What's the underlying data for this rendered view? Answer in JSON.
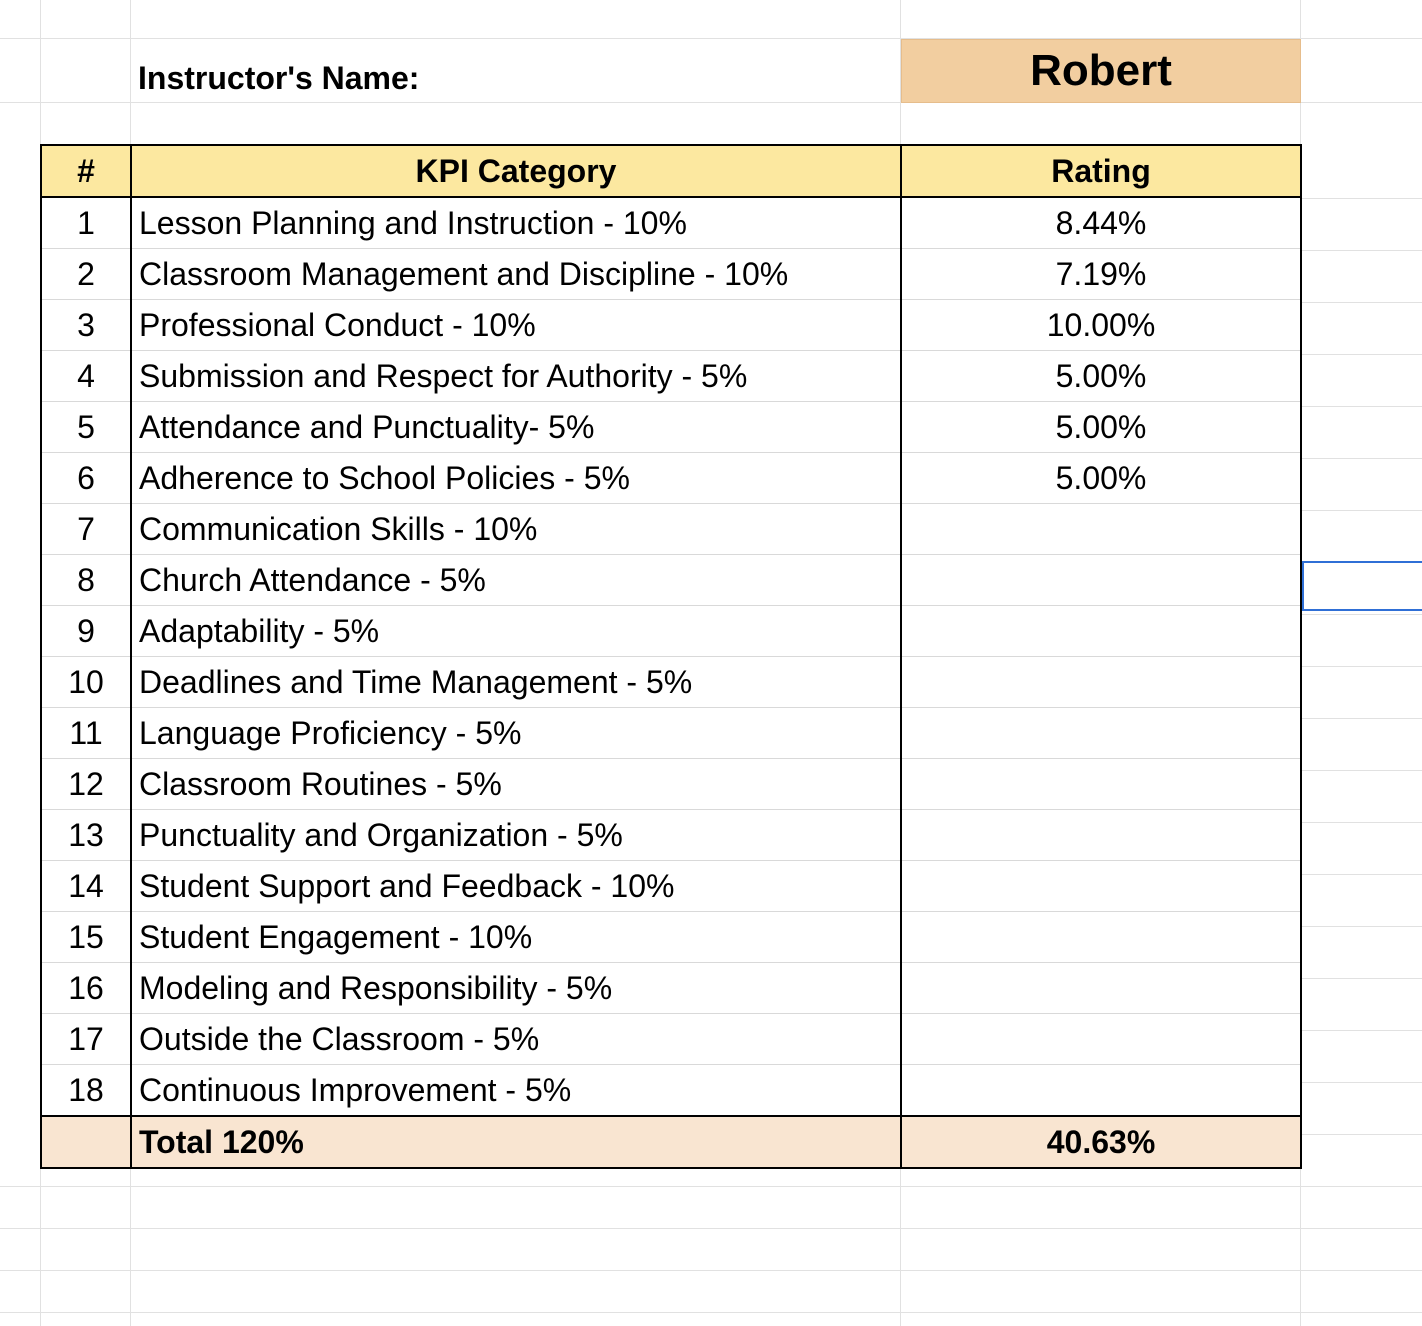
{
  "header": {
    "label": "Instructor's Name:",
    "value": "Robert"
  },
  "table": {
    "columns": [
      "#",
      "KPI Category",
      "Rating"
    ],
    "rows": [
      {
        "num": "1",
        "category": "Lesson Planning and Instruction - 10%",
        "rating": "8.44%"
      },
      {
        "num": "2",
        "category": "Classroom Management and Discipline - 10%",
        "rating": "7.19%"
      },
      {
        "num": "3",
        "category": "Professional Conduct - 10%",
        "rating": "10.00%"
      },
      {
        "num": "4",
        "category": "Submission and Respect for Authority - 5%",
        "rating": "5.00%"
      },
      {
        "num": "5",
        "category": "Attendance and Punctuality- 5%",
        "rating": "5.00%"
      },
      {
        "num": "6",
        "category": "Adherence to School Policies - 5%",
        "rating": "5.00%"
      },
      {
        "num": "7",
        "category": "Communication Skills - 10%",
        "rating": ""
      },
      {
        "num": "8",
        "category": "Church Attendance - 5%",
        "rating": ""
      },
      {
        "num": "9",
        "category": "Adaptability - 5%",
        "rating": ""
      },
      {
        "num": "10",
        "category": "Deadlines and Time Management - 5%",
        "rating": ""
      },
      {
        "num": "11",
        "category": "Language Proficiency - 5%",
        "rating": ""
      },
      {
        "num": "12",
        "category": "Classroom Routines - 5%",
        "rating": ""
      },
      {
        "num": "13",
        "category": "Punctuality and Organization - 5%",
        "rating": ""
      },
      {
        "num": "14",
        "category": "Student Support and Feedback - 10%",
        "rating": ""
      },
      {
        "num": "15",
        "category": "Student Engagement - 10%",
        "rating": ""
      },
      {
        "num": "16",
        "category": "Modeling and Responsibility - 5%",
        "rating": ""
      },
      {
        "num": "17",
        "category": "Outside the Classroom - 5%",
        "rating": ""
      },
      {
        "num": "18",
        "category": "Continuous Improvement - 5%",
        "rating": ""
      }
    ],
    "total": {
      "label": "Total 120%",
      "rating": "40.63%"
    }
  },
  "colors": {
    "name_fill": "#f2cea0",
    "header_fill": "#fce8a0",
    "total_fill": "#f9e5d1",
    "selection": "#2f6fd6"
  }
}
